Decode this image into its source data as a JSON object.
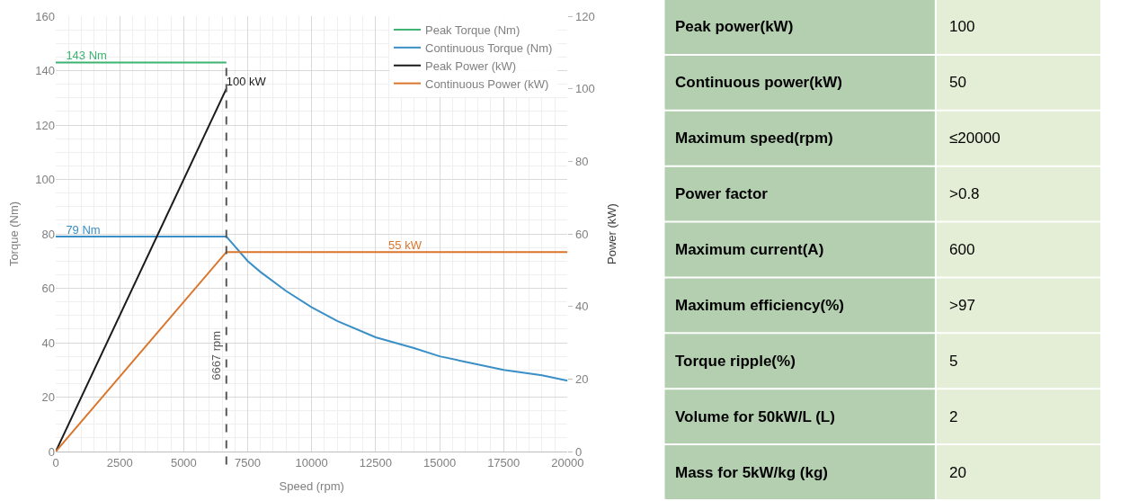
{
  "chart_data": [
    {
      "type": "line",
      "xlabel": "Speed (rpm)",
      "ylabel": "Torque (Nm)",
      "y2label": "Power (kW)",
      "xlim": [
        0,
        20000
      ],
      "xticks": [
        0,
        2500,
        5000,
        7500,
        10000,
        12500,
        15000,
        17500,
        20000
      ],
      "ylim": [
        0,
        160
      ],
      "yticks": [
        0,
        20,
        40,
        60,
        80,
        100,
        120,
        140,
        160
      ],
      "y2lim": [
        0,
        120
      ],
      "y2ticks": [
        0,
        20,
        40,
        60,
        80,
        100,
        120
      ],
      "grid": true,
      "legend": "top right",
      "line_style": "solid",
      "ref_lines": [
        {
          "axis": "x",
          "value": 6667,
          "label": "6667 rpm",
          "color": "#595959",
          "line_style": "dashed"
        }
      ],
      "series": [
        {
          "name": "Peak Torque (Nm)",
          "color": "#3cb371",
          "x": [
            0,
            400,
            6667
          ],
          "values": [
            143,
            143,
            143
          ],
          "value_labels": [
            null,
            "143 Nm",
            null
          ]
        },
        {
          "name": "Continuous Torque (Nm)",
          "color": "#3b8fc7",
          "x": [
            0,
            400,
            6667,
            7500,
            8000,
            9000,
            10000,
            11000,
            12500,
            14000,
            15000,
            16000,
            17500,
            19000,
            20000
          ],
          "values": [
            79,
            79,
            79,
            70,
            66,
            59,
            53,
            48,
            42,
            38,
            35,
            33,
            30,
            28,
            26
          ],
          "value_labels": [
            null,
            "79 Nm",
            null,
            null,
            null,
            null,
            null,
            null,
            null,
            null,
            null,
            null,
            null,
            null,
            null
          ]
        },
        {
          "name": "Peak Power (kW)",
          "color": "#1a1a1a",
          "axis": "y2",
          "x": [
            0,
            6667
          ],
          "values": [
            0,
            100
          ],
          "value_labels": [
            null,
            "100 kW"
          ]
        },
        {
          "name": "Continuous Power (kW)",
          "color": "#d9762c",
          "axis": "y2",
          "x": [
            0,
            6667,
            13000,
            20000
          ],
          "values": [
            0,
            55,
            55,
            55
          ],
          "value_labels": [
            null,
            null,
            "55 kW",
            null
          ]
        }
      ]
    },
    {
      "type": "other",
      "categories": [
        "Peak power(kW)",
        "Continuous power(kW)",
        "Maximum speed(rpm)",
        "Power factor",
        "Maximum current(A)",
        "Maximum efficiency(%)",
        "Torque ripple(%)",
        "Volume for 50kW/L (L)",
        "Mass for 5kW/kg (kg)"
      ],
      "value_labels": [
        "100",
        "50",
        "≤20000",
        ">0.8",
        "600",
        ">97",
        "5",
        "2",
        "20"
      ]
    }
  ]
}
